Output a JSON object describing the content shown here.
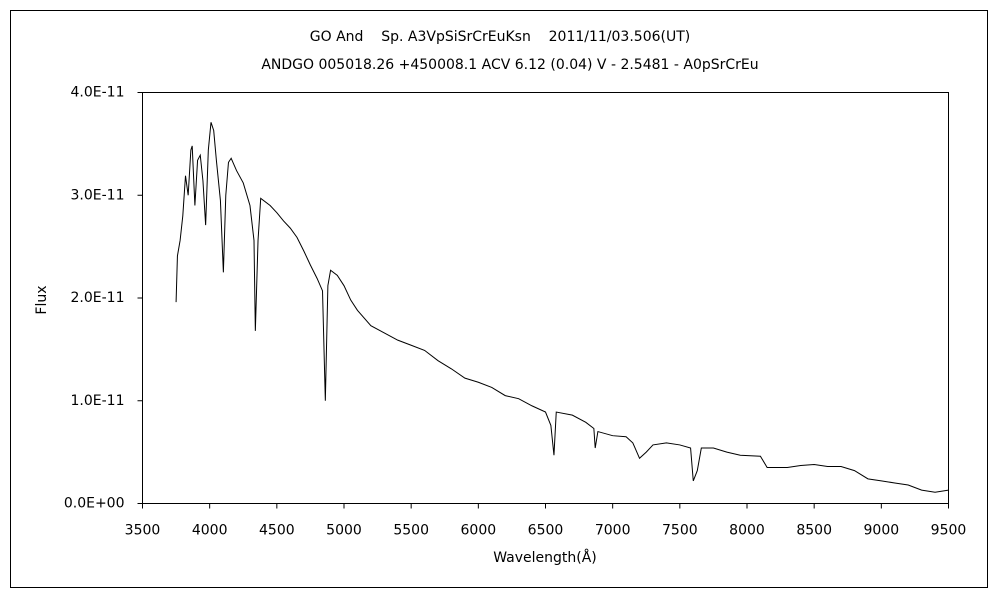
{
  "chart_data": {
    "type": "line",
    "title": "GO And    Sp. A3VpSiSrCrEuKsn    2011/11/03.506(UT)",
    "subtitle": "ANDGO 005018.26 +450008.1 ACV 6.12 (0.04) V - 2.5481 - A0pSrCrEu",
    "x_label": "Wavelength(Å)",
    "y_label": "Flux",
    "xlim": [
      3500,
      9500
    ],
    "xticks": [
      3500,
      4000,
      4500,
      5000,
      5500,
      6000,
      6500,
      7000,
      7500,
      8000,
      8500,
      9000,
      9500
    ],
    "ylim": [
      0,
      4e-11
    ],
    "yticks": [
      {
        "value": 0,
        "label": "0.0E+00"
      },
      {
        "value": 1e-11,
        "label": "1.0E-11"
      },
      {
        "value": 2e-11,
        "label": "2.0E-11"
      },
      {
        "value": 3e-11,
        "label": "3.0E-11"
      },
      {
        "value": 4e-11,
        "label": "4.0E-11"
      }
    ],
    "grid": false,
    "series": [
      {
        "color": "#000000",
        "x": [
          3750,
          3760,
          3780,
          3800,
          3820,
          3840,
          3860,
          3870,
          3890,
          3910,
          3930,
          3950,
          3970,
          3990,
          4010,
          4030,
          4050,
          4080,
          4102,
          4120,
          4140,
          4160,
          4200,
          4250,
          4300,
          4330,
          4340,
          4360,
          4380,
          4450,
          4500,
          4550,
          4600,
          4650,
          4700,
          4750,
          4800,
          4840,
          4861,
          4880,
          4900,
          4950,
          5000,
          5050,
          5100,
          5200,
          5300,
          5400,
          5500,
          5600,
          5700,
          5800,
          5900,
          6000,
          6100,
          6200,
          6300,
          6400,
          6500,
          6540,
          6563,
          6580,
          6700,
          6800,
          6860,
          6870,
          6890,
          7000,
          7100,
          7150,
          7200,
          7250,
          7300,
          7400,
          7500,
          7580,
          7600,
          7630,
          7660,
          7750,
          7850,
          7950,
          8100,
          8150,
          8300,
          8400,
          8500,
          8600,
          8700,
          8800,
          8900,
          9000,
          9100,
          9200,
          9300,
          9400,
          9500
        ],
        "values": [
          1.96e-11,
          2.41e-11,
          2.56e-11,
          2.8e-11,
          3.19e-11,
          3e-11,
          3.44e-11,
          3.48e-11,
          2.9e-11,
          3.34e-11,
          3.39e-11,
          3.14e-11,
          2.71e-11,
          3.44e-11,
          3.71e-11,
          3.63e-11,
          3.34e-11,
          2.95e-11,
          2.25e-11,
          3e-11,
          3.32e-11,
          3.36e-11,
          3.24e-11,
          3.12e-11,
          2.9e-11,
          2.56e-11,
          1.68e-11,
          2.56e-11,
          2.97e-11,
          2.9e-11,
          2.83e-11,
          2.75e-11,
          2.68e-11,
          2.59e-11,
          2.46e-11,
          2.32e-11,
          2.19e-11,
          2.07e-11,
          1e-11,
          2.12e-11,
          2.27e-11,
          2.22e-11,
          2.12e-11,
          1.98e-11,
          1.88e-11,
          1.73e-11,
          1.66e-11,
          1.59e-11,
          1.54e-11,
          1.49e-11,
          1.39e-11,
          1.31e-11,
          1.22e-11,
          1.18e-11,
          1.13e-11,
          1.05e-11,
          1.02e-11,
          9.5e-12,
          8.9e-12,
          7.6e-12,
          4.7e-12,
          8.9e-12,
          8.6e-12,
          7.9e-12,
          7.3e-12,
          5.4e-12,
          7e-12,
          6.6e-12,
          6.5e-12,
          5.9e-12,
          4.4e-12,
          5e-12,
          5.7e-12,
          5.9e-12,
          5.7e-12,
          5.4e-12,
          2.2e-12,
          3.2e-12,
          5.4e-12,
          5.4e-12,
          5e-12,
          4.7e-12,
          4.6e-12,
          3.5e-12,
          3.5e-12,
          3.7e-12,
          3.8e-12,
          3.6e-12,
          3.6e-12,
          3.2e-12,
          2.4e-12,
          2.2e-12,
          2e-12,
          1.8e-12,
          1.3e-12,
          1.1e-12,
          1.3e-12
        ]
      }
    ]
  }
}
